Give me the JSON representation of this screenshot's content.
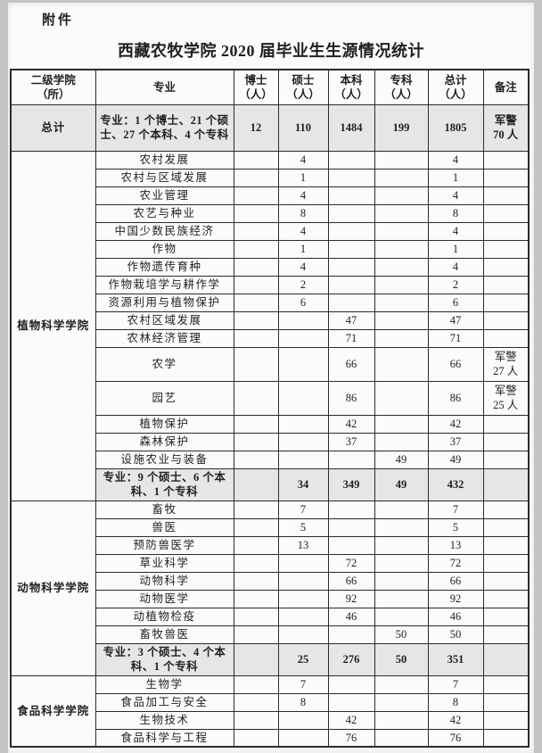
{
  "page": {
    "attachment_label": "附件",
    "title": "西藏农牧学院 2020 届毕业生生源情况统计"
  },
  "colors": {
    "shaded_row": "#e6e6e6",
    "border": "#2b2b2b",
    "paper": "#fbfbfb",
    "scan_edge": "#c4c4c4"
  },
  "table": {
    "columns": [
      {
        "key": "college",
        "label": "二级学院\n（所）"
      },
      {
        "key": "major",
        "label": "专业"
      },
      {
        "key": "doctor",
        "label": "博士\n（人）"
      },
      {
        "key": "master",
        "label": "硕士\n（人）"
      },
      {
        "key": "bachelor",
        "label": "本科\n（人）"
      },
      {
        "key": "junior",
        "label": "专科\n（人）"
      },
      {
        "key": "total",
        "label": "总计\n（人）"
      },
      {
        "key": "note",
        "label": "备注"
      }
    ],
    "grand_total": {
      "college": "总计",
      "major": "专业：1 个博士、21 个硕士、27 个本科、4 个专科",
      "doctor": "12",
      "master": "110",
      "bachelor": "1484",
      "junior": "199",
      "total": "1805",
      "note": "军警\n70 人"
    },
    "sections": [
      {
        "college": "植物科学学院",
        "rows": [
          {
            "major": "农村发展",
            "master": "4",
            "total": "4"
          },
          {
            "major": "农村与区域发展",
            "master": "1",
            "total": "1"
          },
          {
            "major": "农业管理",
            "master": "4",
            "total": "4"
          },
          {
            "major": "农艺与种业",
            "master": "8",
            "total": "8"
          },
          {
            "major": "中国少数民族经济",
            "master": "4",
            "total": "4"
          },
          {
            "major": "作物",
            "master": "1",
            "total": "1"
          },
          {
            "major": "作物遗传育种",
            "master": "4",
            "total": "4"
          },
          {
            "major": "作物栽培学与耕作学",
            "master": "2",
            "total": "2"
          },
          {
            "major": "资源利用与植物保护",
            "master": "6",
            "total": "6"
          },
          {
            "major": "农村区域发展",
            "bachelor": "47",
            "total": "47"
          },
          {
            "major": "农林经济管理",
            "bachelor": "71",
            "total": "71"
          },
          {
            "major": "农学",
            "bachelor": "66",
            "total": "66",
            "note": "军警\n27 人",
            "tall": true
          },
          {
            "major": "园艺",
            "bachelor": "86",
            "total": "86",
            "note": "军警\n25 人",
            "tall": true
          },
          {
            "major": "植物保护",
            "bachelor": "42",
            "total": "42"
          },
          {
            "major": "森林保护",
            "bachelor": "37",
            "total": "37"
          },
          {
            "major": "设施农业与装备",
            "junior": "49",
            "total": "49"
          }
        ],
        "summary": {
          "major": "专业：9 个硕士、6 个本科、1 个专科",
          "master": "34",
          "bachelor": "349",
          "junior": "49",
          "total": "432"
        }
      },
      {
        "college": "动物科学学院",
        "rows": [
          {
            "major": "畜牧",
            "master": "7",
            "total": "7"
          },
          {
            "major": "兽医",
            "master": "5",
            "total": "5"
          },
          {
            "major": "预防兽医学",
            "master": "13",
            "total": "13"
          },
          {
            "major": "草业科学",
            "bachelor": "72",
            "total": "72"
          },
          {
            "major": "动物科学",
            "bachelor": "66",
            "total": "66"
          },
          {
            "major": "动物医学",
            "bachelor": "92",
            "total": "92"
          },
          {
            "major": "动植物检疫",
            "bachelor": "46",
            "total": "46"
          },
          {
            "major": "畜牧兽医",
            "junior": "50",
            "total": "50"
          }
        ],
        "summary": {
          "major": "专业：3 个硕士、4 个本科、1 个专科",
          "master": "25",
          "bachelor": "276",
          "junior": "50",
          "total": "351"
        }
      },
      {
        "college": "食品科学学院",
        "rows": [
          {
            "major": "生物学",
            "master": "7",
            "total": "7"
          },
          {
            "major": "食品加工与安全",
            "master": "8",
            "total": "8"
          },
          {
            "major": "生物技术",
            "bachelor": "42",
            "total": "42"
          },
          {
            "major": "食品科学与工程",
            "bachelor": "76",
            "total": "76"
          }
        ],
        "summary": null
      }
    ]
  }
}
